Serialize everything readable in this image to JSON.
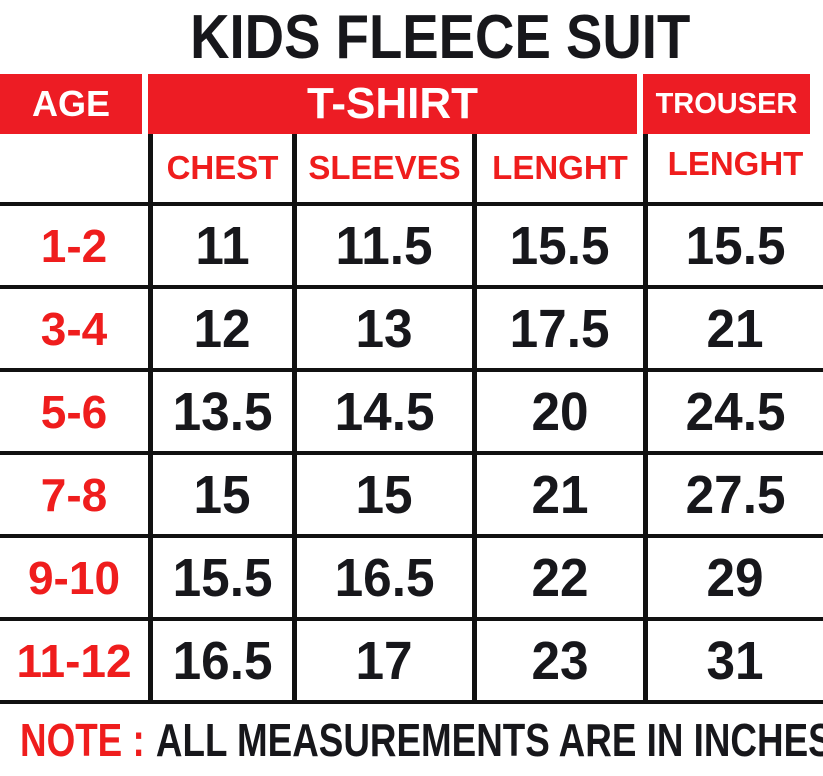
{
  "title": "KIDS FLEECE SUIT",
  "colors": {
    "accent_red": "#ED1C24",
    "text_red": "#EF1D1D",
    "text_black": "#17171B",
    "border_black": "#111111",
    "background": "#FFFFFF"
  },
  "table": {
    "header": {
      "age": "AGE",
      "tshirt": "T-SHIRT",
      "trouser": "TROUSER"
    },
    "subheader": {
      "chest": "CHEST",
      "sleeves": "SLEEVES",
      "length": "LENGHT",
      "trouser_length": "LENGHT"
    },
    "rows": [
      {
        "age": "1-2",
        "chest": "11",
        "sleeves": "11.5",
        "length": "15.5",
        "trouser_length": "15.5"
      },
      {
        "age": "3-4",
        "chest": "12",
        "sleeves": "13",
        "length": "17.5",
        "trouser_length": "21"
      },
      {
        "age": "5-6",
        "chest": "13.5",
        "sleeves": "14.5",
        "length": "20",
        "trouser_length": "24.5"
      },
      {
        "age": "7-8",
        "chest": "15",
        "sleeves": "15",
        "length": "21",
        "trouser_length": "27.5"
      },
      {
        "age": "9-10",
        "chest": "15.5",
        "sleeves": "16.5",
        "length": "22",
        "trouser_length": "29"
      },
      {
        "age": "11-12",
        "chest": "16.5",
        "sleeves": "17",
        "length": "23",
        "trouser_length": "31"
      }
    ]
  },
  "note": {
    "label": "NOTE :",
    "text": "ALL MEASUREMENTS ARE IN INCHES"
  },
  "chart_data": {
    "type": "table",
    "title": "KIDS FLEECE SUIT",
    "columns": [
      "AGE",
      "T-SHIRT CHEST",
      "T-SHIRT SLEEVES",
      "T-SHIRT LENGHT",
      "TROUSER LENGHT"
    ],
    "rows": [
      [
        "1-2",
        11,
        11.5,
        15.5,
        15.5
      ],
      [
        "3-4",
        12,
        13,
        17.5,
        21
      ],
      [
        "5-6",
        13.5,
        14.5,
        20,
        24.5
      ],
      [
        "7-8",
        15,
        15,
        21,
        27.5
      ],
      [
        "9-10",
        15.5,
        16.5,
        22,
        29
      ],
      [
        "11-12",
        16.5,
        17,
        23,
        31
      ]
    ],
    "units": "inches",
    "note": "NOTE : ALL MEASUREMENTS ARE IN INCHES"
  }
}
